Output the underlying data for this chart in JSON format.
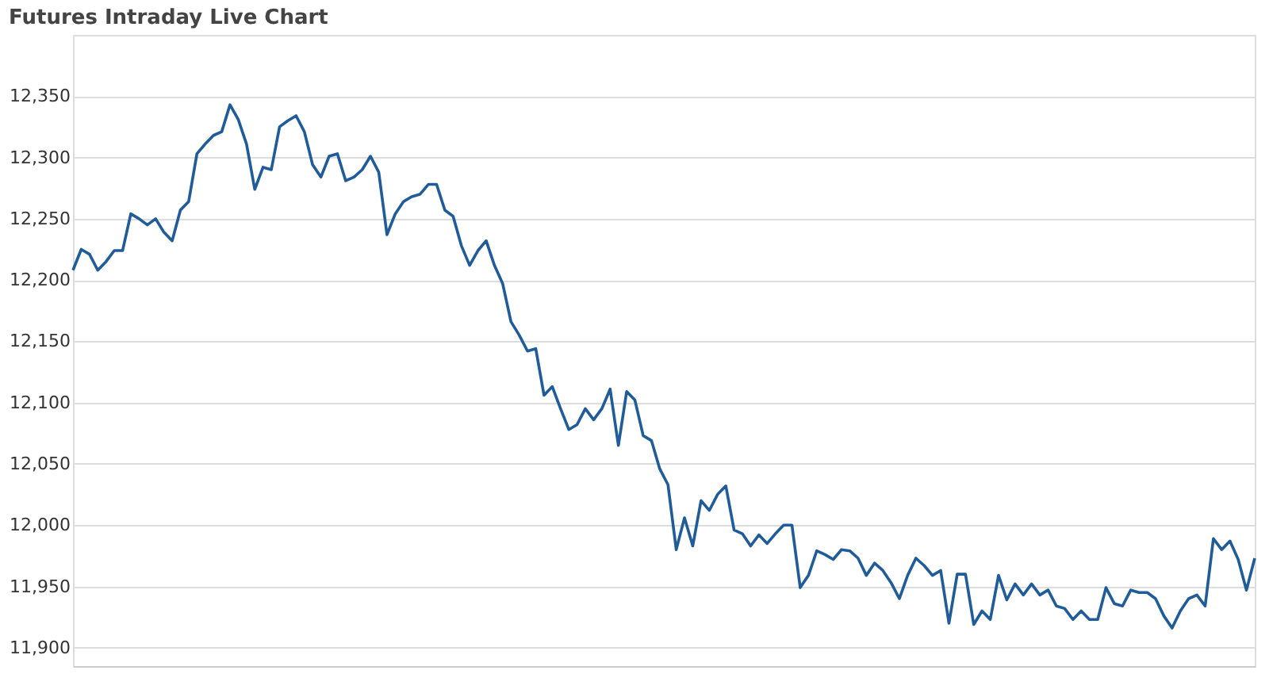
{
  "chart_data": {
    "type": "line",
    "title": "Futures Intraday Live Chart",
    "categories": [
      null,
      null,
      null,
      null,
      null,
      null,
      null,
      null,
      null,
      null,
      null,
      null,
      null,
      null,
      null,
      null,
      null,
      null,
      null,
      null,
      null,
      null,
      null,
      null,
      null,
      null,
      null,
      null,
      null,
      null,
      null,
      null,
      null,
      null,
      null,
      null,
      null,
      null,
      null,
      null,
      null,
      null,
      null,
      null,
      null,
      null,
      null,
      null,
      null,
      null,
      null,
      null,
      null,
      null,
      null,
      null,
      null,
      null,
      null,
      null,
      null,
      null,
      null,
      null,
      null,
      null,
      null,
      null,
      null,
      null,
      null,
      null,
      null,
      null,
      null,
      null,
      null,
      null,
      null,
      null,
      null,
      null,
      null,
      null,
      null,
      null,
      null,
      null,
      null,
      null,
      null,
      null,
      null,
      null,
      null,
      null,
      null,
      null,
      null,
      null,
      null,
      null,
      null,
      null,
      null,
      null,
      null,
      null,
      null,
      null,
      null,
      null,
      null,
      null,
      null,
      null,
      null,
      null,
      null,
      null,
      null,
      null,
      null,
      null,
      null,
      null,
      null,
      null,
      null,
      null,
      null,
      null,
      null,
      null,
      null,
      null,
      null,
      null,
      null,
      null,
      null,
      null,
      null,
      null
    ],
    "series": [
      {
        "color": "#1f5c99",
        "values": [
          12208,
          12225,
          12221,
          12208,
          12215,
          12224,
          12224,
          12254,
          12250,
          12245,
          12250,
          12239,
          12232,
          12257,
          12264,
          12303,
          12311,
          12318,
          12321,
          12343,
          12331,
          12311,
          12274,
          12292,
          12290,
          12325,
          12330,
          12334,
          12321,
          12294,
          12284,
          12301,
          12303,
          12281,
          12284,
          12290,
          12301,
          12288,
          12237,
          12254,
          12264,
          12268,
          12270,
          12278,
          12278,
          12257,
          12252,
          12228,
          12212,
          12224,
          12232,
          12212,
          12197,
          12166,
          12155,
          12142,
          12144,
          12106,
          12113,
          12095,
          12078,
          12082,
          12095,
          12086,
          12095,
          12111,
          12065,
          12109,
          12102,
          12073,
          12069,
          12046,
          12033,
          11980,
          12006,
          11983,
          12020,
          12012,
          12025,
          12032,
          11996,
          11993,
          11983,
          11992,
          11985,
          11993,
          12000,
          12000,
          11949,
          11959,
          11979,
          11976,
          11972,
          11980,
          11979,
          11973,
          11959,
          11969,
          11963,
          11953,
          11940,
          11959,
          11973,
          11967,
          11959,
          11963,
          11920,
          11960,
          11960,
          11919,
          11930,
          11923,
          11959,
          11939,
          11952,
          11943,
          11952,
          11943,
          11947,
          11934,
          11932,
          11923,
          11930,
          11923,
          11923,
          11949,
          11936,
          11934,
          11947,
          11945,
          11945,
          11940,
          11926,
          11916,
          11930,
          11940,
          11943,
          11934,
          11989,
          11980,
          11987,
          11972,
          11947,
          11973
        ]
      }
    ],
    "ylim": [
      11885,
      12400
    ],
    "yticks": [
      {
        "value": 11900,
        "label": "11,900"
      },
      {
        "value": 11950,
        "label": "11,950"
      },
      {
        "value": 12000,
        "label": "12,000"
      },
      {
        "value": 12050,
        "label": "12,050"
      },
      {
        "value": 12100,
        "label": "12,100"
      },
      {
        "value": 12150,
        "label": "12,150"
      },
      {
        "value": 12200,
        "label": "12,200"
      },
      {
        "value": 12250,
        "label": "12,250"
      },
      {
        "value": 12300,
        "label": "12,300"
      },
      {
        "value": 12350,
        "label": "12,350"
      }
    ],
    "grid": "y",
    "marker": "none",
    "line_style": "solid"
  }
}
